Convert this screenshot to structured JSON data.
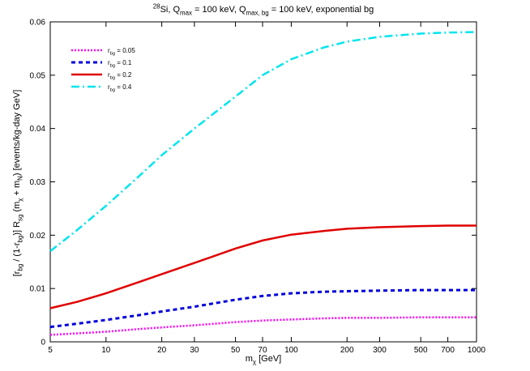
{
  "chart_data": {
    "type": "line",
    "title": [
      {
        "text": "28",
        "style": "sup"
      },
      {
        "text": "Si, Q"
      },
      {
        "text": "max",
        "style": "sub"
      },
      {
        "text": " = 100 keV, Q"
      },
      {
        "text": "max, bg",
        "style": "sub"
      },
      {
        "text": " = 100 keV, exponential bg"
      }
    ],
    "xlabel": [
      {
        "text": "m"
      },
      {
        "text": "χ",
        "style": "sub"
      },
      {
        "text": " [GeV]"
      }
    ],
    "ylabel": [
      {
        "text": "[r"
      },
      {
        "text": "bg",
        "style": "sub"
      },
      {
        "text": " / (1-r"
      },
      {
        "text": "bg",
        "style": "sub"
      },
      {
        "text": ")] R"
      },
      {
        "text": "sg",
        "style": "sub"
      },
      {
        "text": " (m"
      },
      {
        "text": "χ",
        "style": "sub"
      },
      {
        "text": " + m"
      },
      {
        "text": "N",
        "style": "sub"
      },
      {
        "text": ")  [events/kg-day GeV]"
      }
    ],
    "xscale": "log",
    "x": [
      5,
      7,
      10,
      15,
      20,
      30,
      50,
      70,
      100,
      150,
      200,
      300,
      500,
      700,
      1000
    ],
    "series": [
      {
        "name": [
          {
            "text": "r"
          },
          {
            "text": "bg",
            "style": "sub"
          },
          {
            "text": " = 0.05"
          }
        ],
        "color": "#ff00ff",
        "dash": "2,2",
        "width": 2.5,
        "values": [
          0.0013,
          0.0016,
          0.0019,
          0.0024,
          0.0027,
          0.0031,
          0.0037,
          0.004,
          0.0042,
          0.0044,
          0.0045,
          0.0045,
          0.0046,
          0.0046,
          0.0046
        ]
      },
      {
        "name": [
          {
            "text": "r"
          },
          {
            "text": "bg",
            "style": "sub"
          },
          {
            "text": " = 0.1"
          }
        ],
        "color": "#0000dd",
        "dash": "5,4",
        "width": 3,
        "values": [
          0.0028,
          0.0034,
          0.0041,
          0.005,
          0.0057,
          0.0066,
          0.0079,
          0.0086,
          0.0091,
          0.0094,
          0.0095,
          0.0096,
          0.0097,
          0.0097,
          0.0097
        ]
      },
      {
        "name": [
          {
            "text": "r"
          },
          {
            "text": "bg",
            "style": "sub"
          },
          {
            "text": " = 0.2"
          }
        ],
        "color": "#e00000",
        "dash": "none",
        "width": 2.5,
        "values": [
          0.0063,
          0.0075,
          0.0091,
          0.0112,
          0.0127,
          0.0148,
          0.0175,
          0.019,
          0.0201,
          0.0208,
          0.0212,
          0.0215,
          0.0217,
          0.0218,
          0.0218
        ]
      },
      {
        "name": [
          {
            "text": "r"
          },
          {
            "text": "bg",
            "style": "sub"
          },
          {
            "text": " = 0.4"
          }
        ],
        "color": "#00e5ee",
        "dash": "10,4,2,4",
        "width": 2.5,
        "values": [
          0.017,
          0.021,
          0.0255,
          0.031,
          0.035,
          0.04,
          0.046,
          0.05,
          0.053,
          0.0552,
          0.0563,
          0.0572,
          0.0578,
          0.058,
          0.0581
        ]
      }
    ],
    "xlim": [
      5,
      1000
    ],
    "xticks": [
      5,
      10,
      20,
      30,
      50,
      70,
      100,
      200,
      300,
      500,
      700,
      1000
    ],
    "ylim": [
      0,
      0.06
    ],
    "yticks": [
      0,
      0.01,
      0.02,
      0.03,
      0.04,
      0.05,
      0.06
    ],
    "legend": "upper left"
  }
}
